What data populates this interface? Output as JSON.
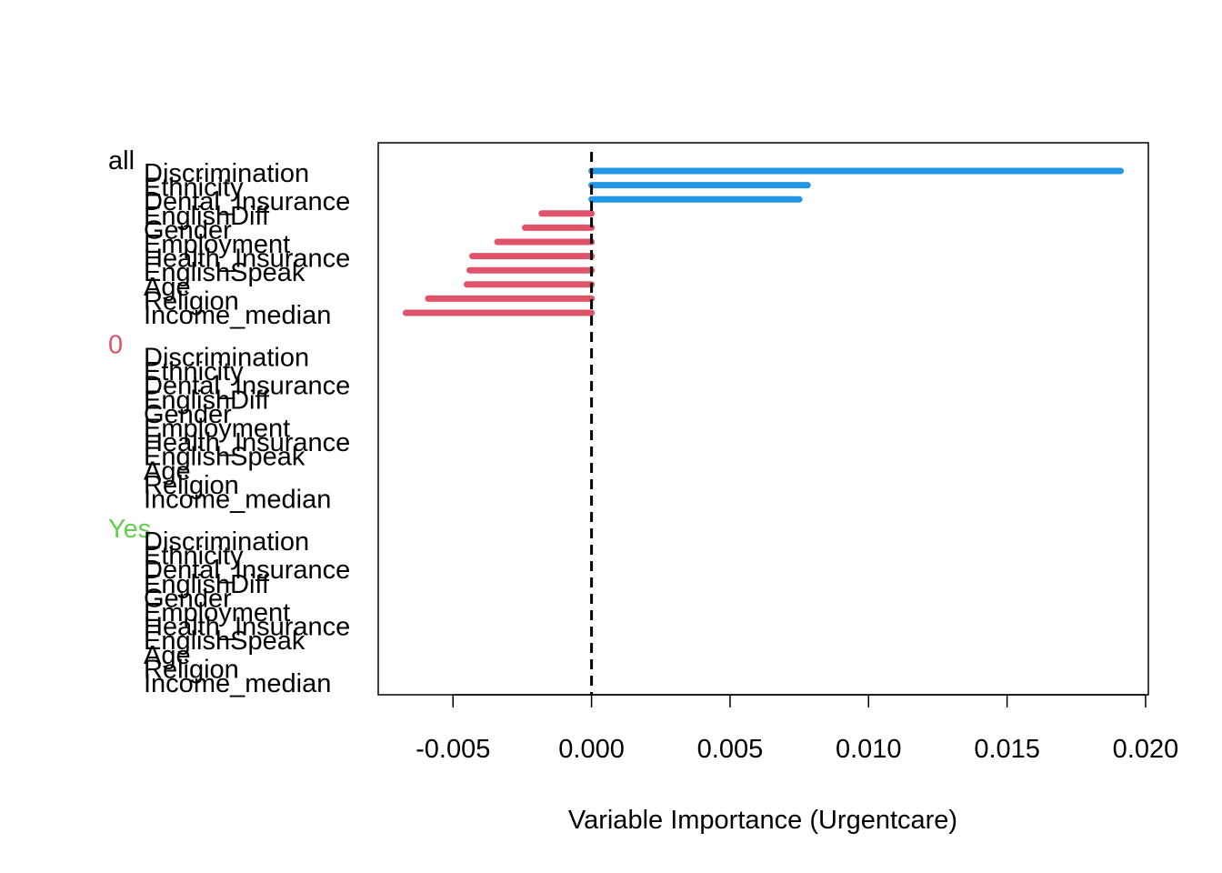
{
  "chart_data": {
    "type": "bar",
    "orientation": "horizontal",
    "xlabel": "Variable Importance (Urgentcare)",
    "xlim": [
      -0.0077,
      0.0201
    ],
    "xticks": [
      "-0.005",
      "0.000",
      "0.005",
      "0.010",
      "0.015",
      "0.020"
    ],
    "xtick_values": [
      -0.005,
      0.0,
      0.005,
      0.01,
      0.015,
      0.02
    ],
    "reference_line": 0.0,
    "positive_color": "#2297E6",
    "negative_color": "#DF536B",
    "groups": [
      {
        "name": "all",
        "color": "#000000",
        "variables": [
          "Discrimination",
          "Ethnicity",
          "Dental_Insurance",
          "EnglishDiff",
          "Gender",
          "Employment",
          "Health_Insurance",
          "EnglishSpeak",
          "Age",
          "Religion",
          "Income_median"
        ],
        "values": [
          0.0191,
          0.0078,
          0.0075,
          -0.0018,
          -0.0024,
          -0.0034,
          -0.0043,
          -0.0044,
          -0.0045,
          -0.0059,
          -0.0067
        ]
      },
      {
        "name": "0",
        "color": "#DF536B",
        "variables": [
          "Discrimination",
          "Ethnicity",
          "Dental_Insurance",
          "EnglishDiff",
          "Gender",
          "Employment",
          "Health_Insurance",
          "EnglishSpeak",
          "Age",
          "Religion",
          "Income_median"
        ],
        "values": [
          0,
          0,
          0,
          0,
          0,
          0,
          0,
          0,
          0,
          0,
          0
        ]
      },
      {
        "name": "Yes",
        "color": "#61D04F",
        "variables": [
          "Discrimination",
          "Ethnicity",
          "Dental_Insurance",
          "EnglishDiff",
          "Gender",
          "Employment",
          "Health_Insurance",
          "EnglishSpeak",
          "Age",
          "Religion",
          "Income_median"
        ],
        "values": [
          0,
          0,
          0,
          0,
          0,
          0,
          0,
          0,
          0,
          0,
          0
        ]
      }
    ]
  }
}
